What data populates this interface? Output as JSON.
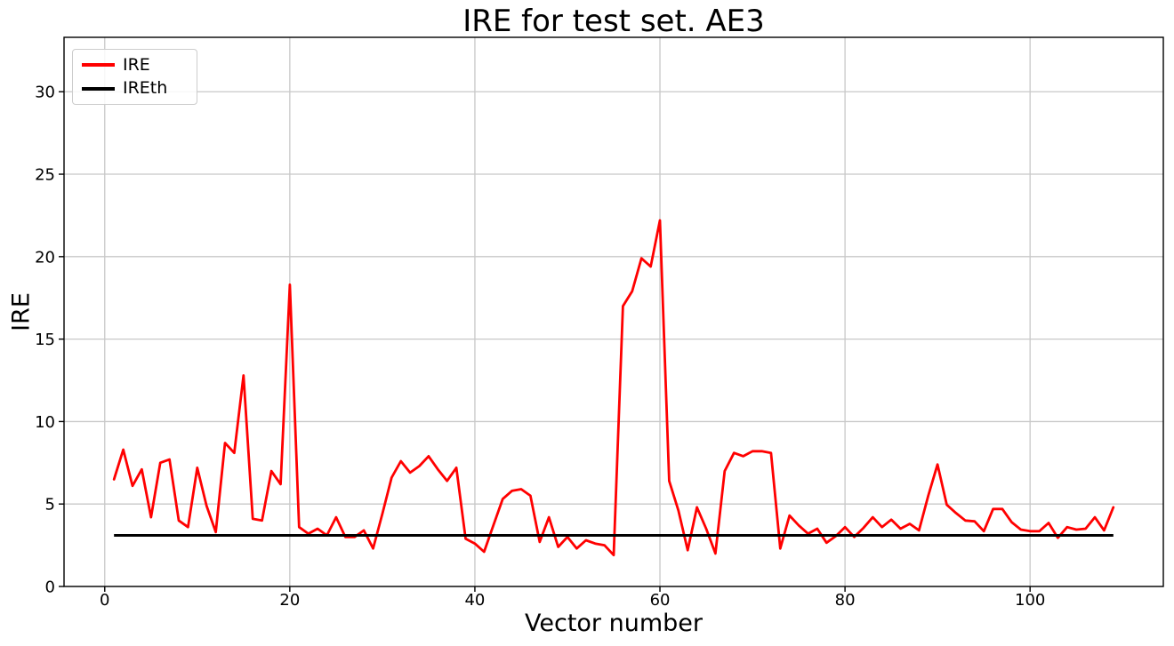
{
  "chart_data": {
    "type": "line",
    "title": "IRE for test set. AE3",
    "xlabel": "Vector number",
    "ylabel": "IRE",
    "xlim": [
      -4.4,
      114.4
    ],
    "ylim": [
      0,
      33.3
    ],
    "x_ticks": [
      0,
      20,
      40,
      60,
      80,
      100
    ],
    "y_ticks": [
      0,
      5,
      10,
      15,
      20,
      25,
      30
    ],
    "grid": true,
    "grid_color": "#c8c8c8",
    "background": "#ffffff",
    "legend_position": "upper-left",
    "series": [
      {
        "name": "IRE",
        "type": "line",
        "color": "#ff0000",
        "x_start": 1,
        "x_step": 1,
        "values": [
          6.5,
          8.3,
          6.1,
          7.1,
          4.2,
          7.5,
          7.7,
          4.0,
          3.6,
          7.2,
          4.9,
          3.3,
          8.7,
          8.1,
          12.8,
          4.1,
          4.0,
          7.0,
          6.2,
          18.3,
          3.6,
          3.2,
          3.5,
          3.1,
          4.2,
          3.0,
          3.0,
          3.4,
          2.3,
          4.4,
          6.6,
          7.6,
          6.9,
          7.3,
          7.9,
          7.1,
          6.4,
          7.2,
          2.9,
          2.6,
          2.1,
          3.7,
          5.3,
          5.8,
          5.9,
          5.5,
          2.7,
          4.2,
          2.4,
          3.0,
          2.3,
          2.8,
          2.6,
          2.5,
          1.9,
          17.0,
          17.9,
          19.9,
          19.4,
          22.2,
          6.4,
          4.6,
          2.2,
          4.8,
          3.5,
          2.0,
          7.0,
          8.1,
          7.9,
          8.2,
          8.2,
          8.1,
          2.3,
          4.3,
          3.7,
          3.2,
          3.5,
          2.65,
          3.05,
          3.6,
          3.0,
          3.55,
          4.2,
          3.6,
          4.05,
          3.5,
          3.8,
          3.4,
          5.5,
          7.4,
          4.95,
          4.45,
          4.0,
          3.95,
          3.35,
          4.7,
          4.7,
          3.9,
          3.45,
          3.35,
          3.35,
          3.85,
          2.95,
          3.6,
          3.45,
          3.5,
          4.2,
          3.4,
          4.8
        ]
      },
      {
        "name": "IREth",
        "type": "hline",
        "color": "#000000",
        "value": 3.1,
        "x_range": [
          1,
          109
        ]
      }
    ]
  }
}
